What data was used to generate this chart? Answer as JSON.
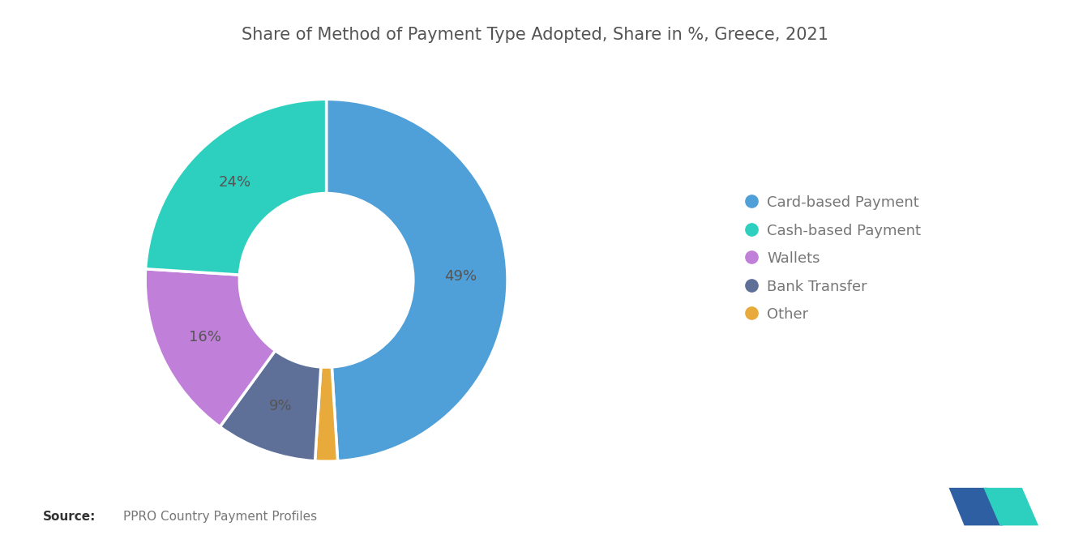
{
  "title": "Share of Method of Payment Type Adopted, Share in %, Greece, 2021",
  "slices": [
    49,
    2,
    9,
    16,
    24
  ],
  "labels": [
    "49%",
    "",
    "9%",
    "16%",
    "24%"
  ],
  "colors": [
    "#4F9FD8",
    "#E8AA3A",
    "#5F7098",
    "#C07FD8",
    "#2DCFBE"
  ],
  "legend_labels": [
    "Card-based Payment",
    "Cash-based Payment",
    "Wallets",
    "Bank Transfer",
    "Other"
  ],
  "legend_colors": [
    "#4F9FD8",
    "#2DCFBE",
    "#C07FD8",
    "#5F7098",
    "#E8AA3A"
  ],
  "source_bold": "Source:",
  "source_text": "PPRO Country Payment Profiles",
  "background_color": "#FFFFFF",
  "title_fontsize": 15,
  "label_fontsize": 13,
  "legend_fontsize": 13,
  "label_color": "#555555"
}
